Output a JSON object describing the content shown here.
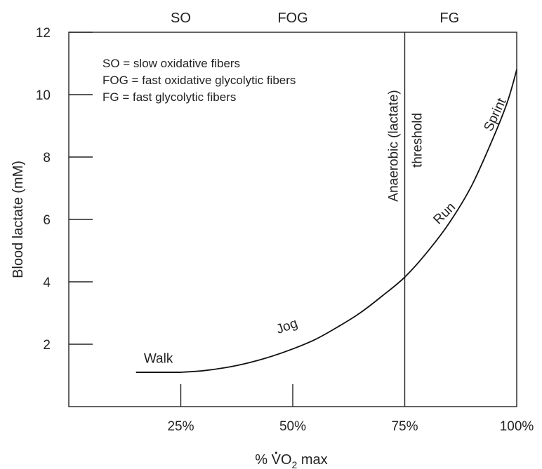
{
  "chart_data": {
    "type": "line",
    "xlabel_prefix": "% ",
    "xlabel_symbol": "VO",
    "xlabel_subscript": "2",
    "xlabel_suffix": " max",
    "ylabel": "Blood lactate (mM)",
    "xlim": [
      0,
      100
    ],
    "ylim": [
      0,
      12
    ],
    "x_ticks": [
      25,
      50,
      75,
      100
    ],
    "x_tick_labels": [
      "25%",
      "50%",
      "75%",
      "100%"
    ],
    "y_ticks": [
      2,
      4,
      6,
      8,
      10,
      12
    ],
    "y_tick_labels": [
      "2",
      "4",
      "6",
      "8",
      "10",
      "12"
    ],
    "zones": [
      {
        "label": "SO",
        "x": 25
      },
      {
        "label": "FOG",
        "x": 50
      },
      {
        "label": "FG",
        "x": 85
      }
    ],
    "legend": [
      "SO = slow oxidative fibers",
      "FOG = fast oxidative glycolytic fibers",
      "FG = fast glycolytic fibers"
    ],
    "threshold": {
      "x": 75,
      "label_line1": "Anaerobic (lactate)",
      "label_line2": "threshold"
    },
    "walk_segment": {
      "x": [
        15,
        25
      ],
      "y": 1.1
    },
    "series": [
      {
        "x": [
          25,
          30,
          35,
          40,
          45,
          50,
          55,
          60,
          65,
          70,
          75,
          80,
          85,
          90,
          95,
          98,
          100
        ],
        "values": [
          1.1,
          1.15,
          1.25,
          1.4,
          1.6,
          1.85,
          2.15,
          2.55,
          3.0,
          3.55,
          4.15,
          4.95,
          5.9,
          7.1,
          8.7,
          9.8,
          10.8
        ]
      }
    ],
    "annotations": [
      {
        "text": "Walk",
        "x": 20,
        "y": 1.4,
        "rotate": 0
      },
      {
        "text": "Jog",
        "x": 49,
        "y": 2.45,
        "rotate": -20
      },
      {
        "text": "Run",
        "x": 84.5,
        "y": 6.1,
        "rotate": -45
      },
      {
        "text": "Sprint",
        "x": 96,
        "y": 9.3,
        "rotate": -65
      }
    ],
    "grid": false
  }
}
